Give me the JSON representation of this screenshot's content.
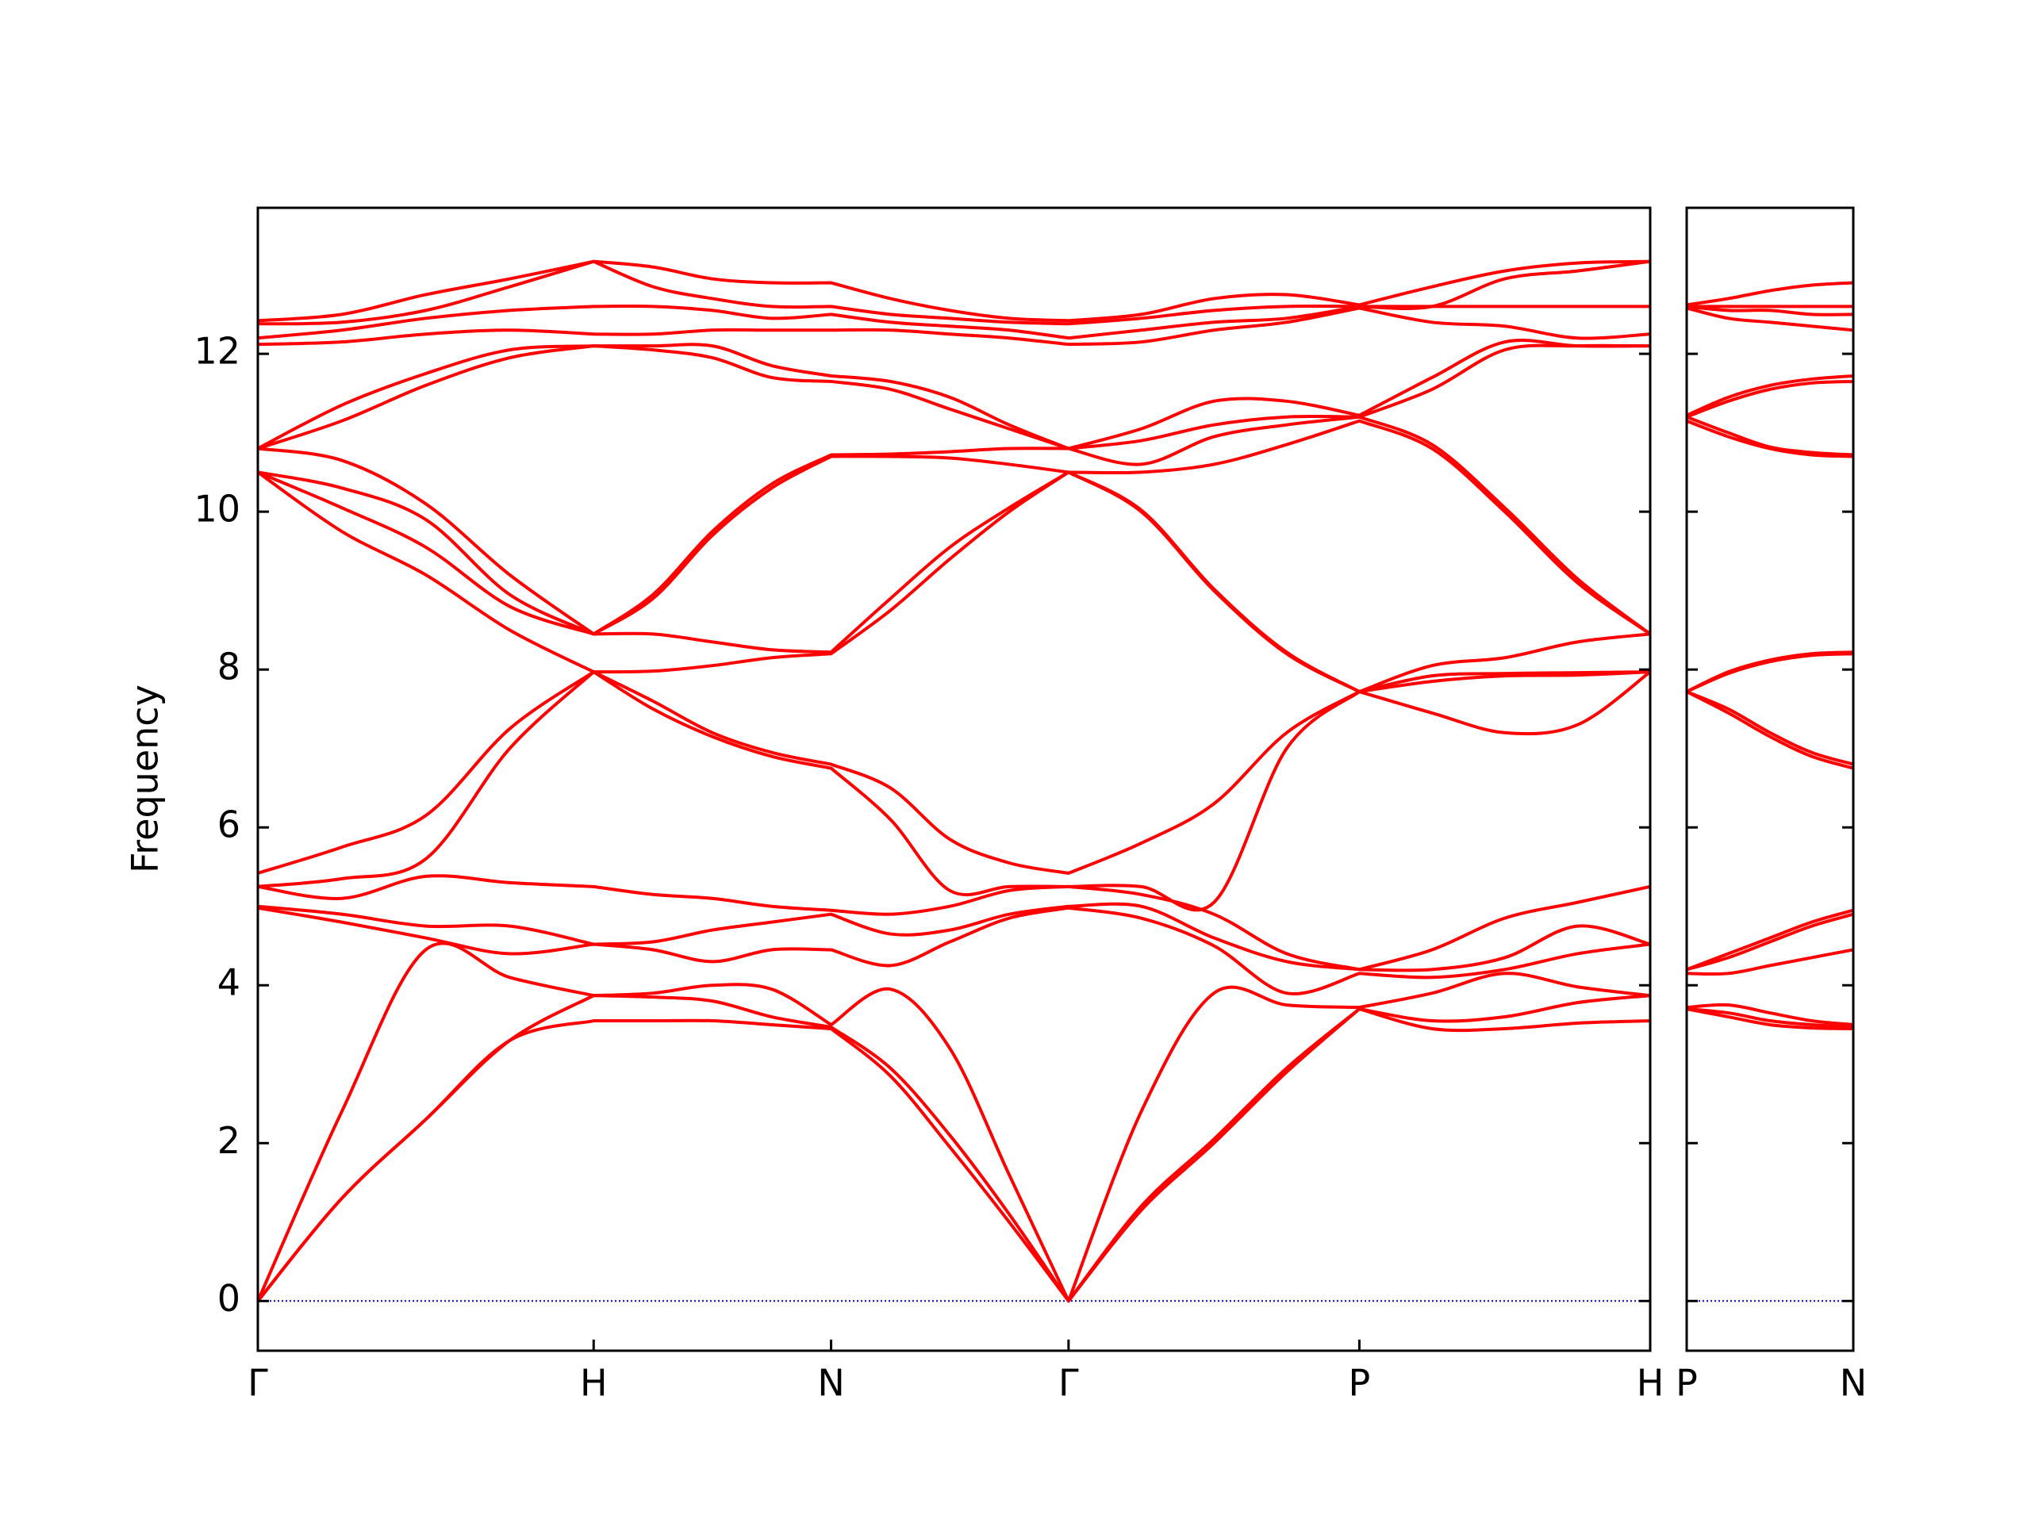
{
  "chart_data": [
    {
      "type": "line",
      "ylabel": "Frequency",
      "color": "#ff0000",
      "xlim": [
        0,
        4.1463
      ],
      "ylim": [
        -0.63,
        13.85
      ],
      "xticks": [
        {
          "value": 0,
          "label": "Γ"
        },
        {
          "value": 1,
          "label": "H"
        },
        {
          "value": 1.7071,
          "label": "N"
        },
        {
          "value": 2.4142,
          "label": "Γ"
        },
        {
          "value": 3.2802,
          "label": "P"
        },
        {
          "value": 4.1463,
          "label": "H"
        }
      ],
      "yticks": [
        0,
        2,
        4,
        6,
        8,
        10,
        12
      ],
      "hline": {
        "value": 0,
        "color": "#0000cc"
      },
      "x": [
        0,
        0.25,
        0.5,
        0.75,
        1,
        1.1768,
        1.3536,
        1.5303,
        1.7071,
        1.8839,
        2.0607,
        2.2374,
        2.4142,
        2.6307,
        2.8472,
        3.0637,
        3.2802,
        3.4967,
        3.7132,
        3.9298,
        4.1463
      ],
      "series": [
        {
          "values": [
            0,
            1.3,
            2.3,
            3.3,
            3.55,
            3.55,
            3.55,
            3.5,
            3.45,
            2.85,
            1.95,
            1.0,
            0,
            1.15,
            2.0,
            2.9,
            3.7,
            3.45,
            3.45,
            3.52,
            3.55
          ]
        },
        {
          "values": [
            0,
            1.3,
            2.3,
            3.3,
            3.87,
            3.85,
            3.8,
            3.6,
            3.47,
            2.95,
            2.1,
            1.1,
            0,
            1.2,
            2.05,
            2.95,
            3.7,
            3.55,
            3.6,
            3.78,
            3.87
          ]
        },
        {
          "values": [
            0,
            2.4,
            4.45,
            4.1,
            3.87,
            3.9,
            4.0,
            3.95,
            3.5,
            3.95,
            3.2,
            1.6,
            0,
            2.4,
            3.9,
            3.75,
            3.72,
            3.9,
            4.15,
            3.98,
            3.87
          ]
        },
        {
          "values": [
            4.98,
            4.8,
            4.6,
            4.4,
            4.52,
            4.45,
            4.3,
            4.45,
            4.45,
            4.25,
            4.55,
            4.85,
            4.98,
            4.85,
            4.5,
            3.9,
            4.15,
            4.1,
            4.2,
            4.4,
            4.52
          ]
        },
        {
          "values": [
            5.0,
            4.9,
            4.75,
            4.75,
            4.52,
            4.55,
            4.7,
            4.8,
            4.9,
            4.65,
            4.7,
            4.9,
            5.0,
            5.0,
            4.6,
            4.3,
            4.2,
            4.2,
            4.35,
            4.75,
            4.52
          ]
        },
        {
          "values": [
            5.25,
            5.1,
            5.38,
            5.3,
            5.25,
            5.15,
            5.1,
            5.0,
            4.95,
            4.9,
            5.0,
            5.2,
            5.25,
            5.15,
            4.9,
            4.4,
            4.2,
            4.45,
            4.85,
            5.05,
            5.25
          ]
        },
        {
          "values": [
            5.25,
            5.35,
            5.6,
            7.0,
            7.97,
            7.5,
            7.15,
            6.9,
            6.75,
            6.1,
            5.2,
            5.25,
            5.25,
            5.25,
            5.05,
            7.0,
            7.72,
            7.45,
            7.2,
            7.3,
            7.97
          ]
        },
        {
          "values": [
            5.42,
            5.75,
            6.15,
            7.25,
            7.97,
            7.6,
            7.2,
            6.95,
            6.8,
            6.5,
            5.85,
            5.55,
            5.42,
            5.8,
            6.3,
            7.2,
            7.72,
            7.85,
            7.92,
            7.93,
            7.97
          ]
        },
        {
          "values": [
            10.5,
            9.75,
            9.2,
            8.5,
            7.97,
            7.98,
            8.05,
            8.15,
            8.2,
            8.75,
            9.4,
            10.0,
            10.5,
            10.0,
            9.0,
            8.2,
            7.72,
            7.92,
            7.95,
            7.96,
            7.97
          ]
        },
        {
          "values": [
            10.5,
            10.05,
            9.55,
            8.8,
            8.45,
            8.45,
            8.35,
            8.25,
            8.22,
            8.9,
            9.55,
            10.05,
            10.5,
            10.02,
            9.02,
            8.22,
            7.72,
            8.05,
            8.15,
            8.35,
            8.45
          ]
        },
        {
          "values": [
            10.5,
            10.3,
            9.9,
            8.95,
            8.45,
            8.9,
            9.7,
            10.3,
            10.7,
            10.7,
            10.68,
            10.6,
            10.5,
            10.5,
            10.6,
            10.85,
            11.15,
            10.8,
            10.0,
            9.1,
            8.45
          ]
        },
        {
          "values": [
            10.8,
            10.65,
            10.1,
            9.2,
            8.45,
            8.95,
            9.75,
            10.35,
            10.72,
            10.73,
            10.76,
            10.8,
            10.8,
            10.6,
            10.95,
            11.1,
            11.2,
            10.85,
            10.05,
            9.15,
            8.45
          ]
        },
        {
          "values": [
            10.8,
            11.15,
            11.6,
            11.95,
            12.1,
            12.05,
            11.95,
            11.7,
            11.65,
            11.55,
            11.3,
            11.05,
            10.8,
            10.9,
            11.1,
            11.2,
            11.2,
            11.55,
            12.05,
            12.1,
            12.1
          ]
        },
        {
          "values": [
            10.8,
            11.35,
            11.75,
            12.05,
            12.1,
            12.1,
            12.1,
            11.85,
            11.72,
            11.65,
            11.45,
            11.1,
            10.8,
            11.05,
            11.4,
            11.4,
            11.22,
            11.7,
            12.15,
            12.1,
            12.1
          ]
        },
        {
          "values": [
            12.12,
            12.15,
            12.25,
            12.3,
            12.25,
            12.25,
            12.3,
            12.3,
            12.3,
            12.3,
            12.25,
            12.2,
            12.12,
            12.15,
            12.3,
            12.4,
            12.58,
            12.4,
            12.35,
            12.2,
            12.25
          ]
        },
        {
          "values": [
            12.2,
            12.3,
            12.45,
            12.55,
            12.6,
            12.6,
            12.55,
            12.45,
            12.5,
            12.4,
            12.35,
            12.3,
            12.2,
            12.3,
            12.4,
            12.45,
            12.6,
            12.6,
            12.6,
            12.6,
            12.6
          ]
        },
        {
          "values": [
            12.38,
            12.4,
            12.55,
            12.85,
            13.17,
            12.85,
            12.7,
            12.6,
            12.6,
            12.5,
            12.45,
            12.4,
            12.38,
            12.45,
            12.55,
            12.6,
            12.6,
            12.6,
            12.95,
            13.05,
            13.17
          ]
        },
        {
          "values": [
            12.42,
            12.5,
            12.75,
            12.95,
            13.17,
            13.1,
            12.95,
            12.9,
            12.9,
            12.7,
            12.55,
            12.45,
            12.42,
            12.5,
            12.7,
            12.75,
            12.62,
            12.85,
            13.05,
            13.15,
            13.17
          ]
        }
      ]
    },
    {
      "type": "line",
      "color": "#ff0000",
      "show_ytick_labels": false,
      "xlim": [
        4.1463,
        4.6463
      ],
      "ylim": [
        -0.63,
        13.85
      ],
      "xticks": [
        {
          "value": 4.1463,
          "label": "P"
        },
        {
          "value": 4.6463,
          "label": "N"
        }
      ],
      "yticks": [
        0,
        2,
        4,
        6,
        8,
        10,
        12
      ],
      "hline": {
        "value": 0,
        "color": "#0000cc"
      },
      "x": [
        4.1463,
        4.2713,
        4.3963,
        4.5213,
        4.6463
      ],
      "series": [
        {
          "values": [
            3.7,
            3.6,
            3.5,
            3.46,
            3.45
          ]
        },
        {
          "values": [
            3.7,
            3.65,
            3.55,
            3.5,
            3.47
          ]
        },
        {
          "values": [
            3.72,
            3.75,
            3.65,
            3.55,
            3.5
          ]
        },
        {
          "values": [
            4.15,
            4.15,
            4.25,
            4.35,
            4.45
          ]
        },
        {
          "values": [
            4.2,
            4.35,
            4.55,
            4.75,
            4.9
          ]
        },
        {
          "values": [
            4.2,
            4.4,
            4.6,
            4.8,
            4.95
          ]
        },
        {
          "values": [
            7.72,
            7.45,
            7.15,
            6.9,
            6.75
          ]
        },
        {
          "values": [
            7.72,
            7.5,
            7.2,
            6.95,
            6.8
          ]
        },
        {
          "values": [
            7.72,
            7.95,
            8.1,
            8.18,
            8.2
          ]
        },
        {
          "values": [
            7.72,
            7.97,
            8.12,
            8.2,
            8.22
          ]
        },
        {
          "values": [
            11.15,
            10.95,
            10.8,
            10.72,
            10.7
          ]
        },
        {
          "values": [
            11.2,
            11.0,
            10.82,
            10.75,
            10.72
          ]
        },
        {
          "values": [
            11.2,
            11.4,
            11.55,
            11.63,
            11.65
          ]
        },
        {
          "values": [
            11.22,
            11.45,
            11.6,
            11.68,
            11.72
          ]
        },
        {
          "values": [
            12.58,
            12.45,
            12.4,
            12.35,
            12.3
          ]
        },
        {
          "values": [
            12.6,
            12.55,
            12.55,
            12.5,
            12.5
          ]
        },
        {
          "values": [
            12.6,
            12.6,
            12.6,
            12.6,
            12.6
          ]
        },
        {
          "values": [
            12.62,
            12.7,
            12.8,
            12.87,
            12.9
          ]
        }
      ]
    }
  ]
}
